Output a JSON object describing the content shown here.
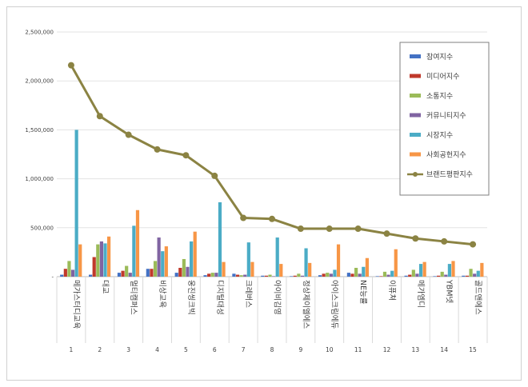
{
  "chart_data": {
    "type": "bar",
    "title": "",
    "xlabel": "",
    "ylabel": "",
    "ylim": [
      0,
      2500000
    ],
    "yticks": [
      0,
      500000,
      1000000,
      1500000,
      2000000,
      2500000
    ],
    "ytick_labels": [
      "-",
      "500,000",
      "1,000,000",
      "1,500,000",
      "2,000,000",
      "2,500,000"
    ],
    "grid": true,
    "legend_position": "top-right",
    "categories": [
      "메가스터디교육",
      "대교",
      "멀티캠퍼스",
      "비상교육",
      "웅진씽크빅",
      "디지털대성",
      "크레버스",
      "아이비김영",
      "정상제이엘에스",
      "아이스크림에듀",
      "NE능률",
      "이퓨쳐",
      "메가엠디",
      "YBM넷",
      "골드앤에스"
    ],
    "rank_labels": [
      "1",
      "2",
      "3",
      "4",
      "5",
      "6",
      "7",
      "8",
      "9",
      "10",
      "11",
      "12",
      "13",
      "14",
      "15"
    ],
    "series": [
      {
        "name": "참여지수",
        "type": "bar",
        "color": "#4472c4",
        "values": [
          20000,
          20000,
          40000,
          80000,
          40000,
          15000,
          30000,
          10000,
          5000,
          15000,
          40000,
          5000,
          10000,
          5000,
          10000
        ]
      },
      {
        "name": "미디어지수",
        "type": "bar",
        "color": "#c0392b",
        "values": [
          80000,
          200000,
          60000,
          80000,
          90000,
          30000,
          20000,
          10000,
          10000,
          30000,
          30000,
          5000,
          20000,
          10000,
          10000
        ]
      },
      {
        "name": "소통지수",
        "type": "bar",
        "color": "#9bbb59",
        "values": [
          160000,
          330000,
          110000,
          160000,
          180000,
          40000,
          15000,
          20000,
          30000,
          40000,
          90000,
          50000,
          70000,
          50000,
          80000
        ]
      },
      {
        "name": "커뮤니티지수",
        "type": "bar",
        "color": "#8064a2",
        "values": [
          70000,
          360000,
          40000,
          400000,
          100000,
          40000,
          20000,
          5000,
          10000,
          30000,
          30000,
          20000,
          30000,
          20000,
          30000
        ]
      },
      {
        "name": "시장지수",
        "type": "bar",
        "color": "#4bacc6",
        "values": [
          1500000,
          340000,
          520000,
          260000,
          360000,
          760000,
          350000,
          400000,
          290000,
          70000,
          100000,
          60000,
          130000,
          130000,
          60000
        ]
      },
      {
        "name": "사회공헌지수",
        "type": "bar",
        "color": "#f79646",
        "values": [
          330000,
          410000,
          680000,
          310000,
          460000,
          150000,
          150000,
          130000,
          140000,
          330000,
          190000,
          280000,
          150000,
          160000,
          140000
        ]
      },
      {
        "name": "브랜드평판지수",
        "type": "line",
        "color": "#8b8343",
        "values": [
          2160000,
          1640000,
          1450000,
          1300000,
          1240000,
          1030000,
          600000,
          590000,
          490000,
          490000,
          490000,
          440000,
          390000,
          360000,
          330000
        ]
      }
    ]
  }
}
